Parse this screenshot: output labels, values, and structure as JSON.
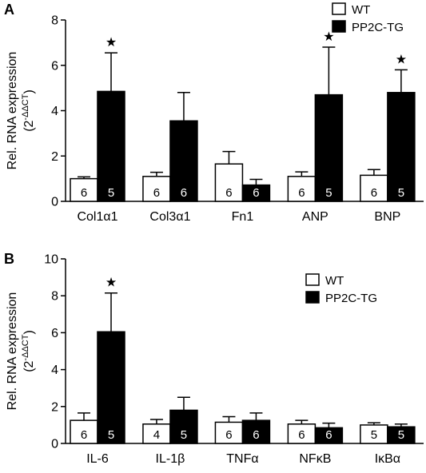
{
  "chart_data": [
    {
      "panel": "A",
      "type": "bar",
      "ylabel": "Rel. RNA expression",
      "ylabel_formula": {
        "base": "(2",
        "sup": "-ΔΔCT",
        "close": ")"
      },
      "ylim": [
        0,
        8
      ],
      "yticks": [
        "0",
        "2",
        "4",
        "6",
        "8"
      ],
      "categories": [
        "Col1α1",
        "Col3α1",
        "Fn1",
        "ANP",
        "BNP"
      ],
      "series": [
        {
          "name": "WT",
          "color": "#ffffff",
          "values": [
            1.0,
            1.1,
            1.65,
            1.1,
            1.15
          ],
          "errors": [
            0.08,
            0.18,
            0.55,
            0.2,
            0.25
          ],
          "n": [
            "6",
            "6",
            "6",
            "6",
            "6"
          ]
        },
        {
          "name": "PP2C-TG",
          "color": "#000000",
          "values": [
            4.85,
            3.55,
            0.72,
            4.7,
            4.8
          ],
          "errors": [
            1.7,
            1.25,
            0.25,
            2.1,
            1.0
          ],
          "n": [
            "5",
            "6",
            "6",
            "5",
            "5"
          ]
        }
      ],
      "significance": [
        {
          "category": 0,
          "series": 1
        },
        {
          "category": 3,
          "series": 1
        },
        {
          "category": 4,
          "series": 1
        }
      ],
      "significance_marker": "★",
      "legend_position": "top-right"
    },
    {
      "panel": "B",
      "type": "bar",
      "ylabel": "Rel. RNA expression",
      "ylabel_formula": {
        "base": "(2",
        "sup": "-ΔΔCT",
        "close": ")"
      },
      "ylim": [
        0,
        10
      ],
      "yticks": [
        "0",
        "2",
        "4",
        "6",
        "8",
        "10"
      ],
      "categories": [
        "IL-6",
        "IL-1β",
        "TNFα",
        "NFκB",
        "IκBα"
      ],
      "series": [
        {
          "name": "WT",
          "color": "#ffffff",
          "values": [
            1.25,
            1.05,
            1.15,
            1.05,
            1.0
          ],
          "errors": [
            0.4,
            0.25,
            0.3,
            0.2,
            0.12
          ],
          "n": [
            "6",
            "4",
            "6",
            "6",
            "5"
          ]
        },
        {
          "name": "PP2C-TG",
          "color": "#000000",
          "values": [
            6.05,
            1.8,
            1.25,
            0.85,
            0.9
          ],
          "errors": [
            2.1,
            0.7,
            0.4,
            0.25,
            0.15
          ],
          "n": [
            "5",
            "5",
            "6",
            "6",
            "5"
          ]
        }
      ],
      "significance": [
        {
          "category": 0,
          "series": 1
        }
      ],
      "significance_marker": "★",
      "legend_position": "right"
    }
  ]
}
